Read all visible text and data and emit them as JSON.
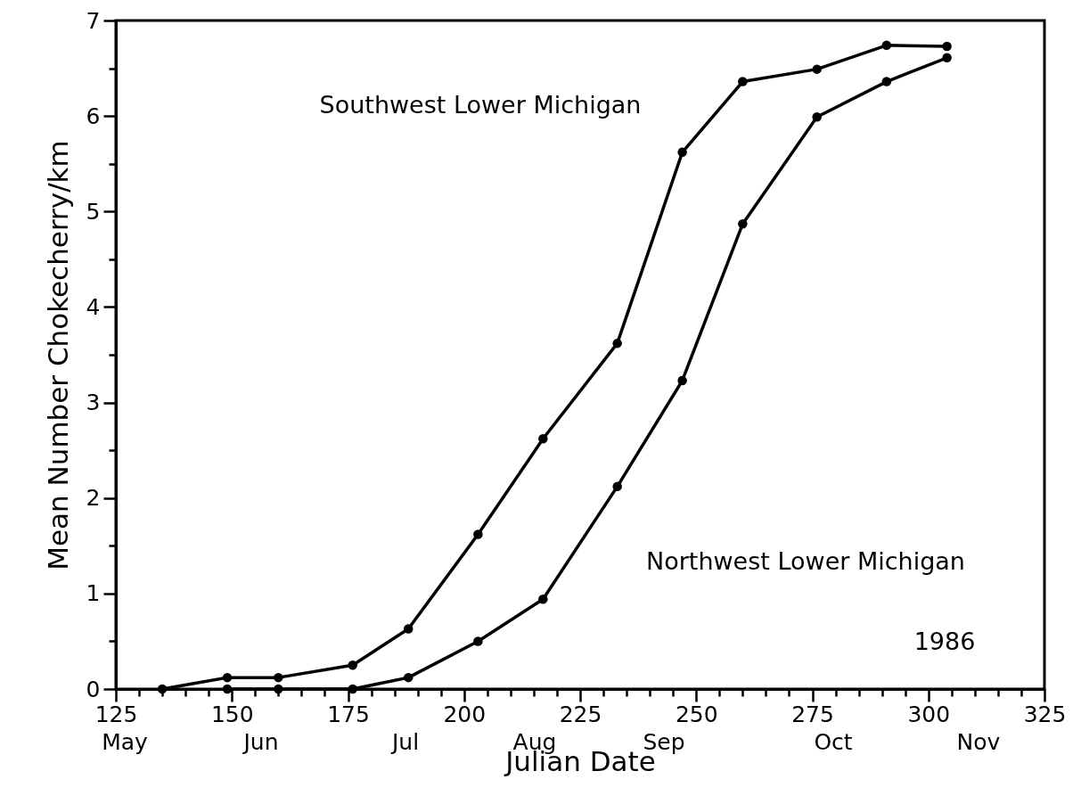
{
  "chart_data": {
    "type": "line",
    "xlabel": "Julian Date",
    "ylabel": "Mean Number Chokecherry/km",
    "xlim": [
      125,
      325
    ],
    "ylim": [
      0,
      7
    ],
    "xticks": [
      125,
      150,
      175,
      200,
      225,
      250,
      275,
      300,
      325,
      {
        "value": 130,
        "label": null
      },
      {
        "value": 135,
        "label": null
      },
      {
        "value": 140,
        "label": null
      },
      {
        "value": 145,
        "label": null
      },
      {
        "value": 155,
        "label": null
      },
      {
        "value": 160,
        "label": null
      },
      {
        "value": 165,
        "label": null
      },
      {
        "value": 170,
        "label": null
      },
      {
        "value": 180,
        "label": null
      },
      {
        "value": 185,
        "label": null
      },
      {
        "value": 190,
        "label": null
      },
      {
        "value": 195,
        "label": null
      },
      {
        "value": 205,
        "label": null
      },
      {
        "value": 210,
        "label": null
      },
      {
        "value": 215,
        "label": null
      },
      {
        "value": 220,
        "label": null
      },
      {
        "value": 230,
        "label": null
      },
      {
        "value": 235,
        "label": null
      },
      {
        "value": 240,
        "label": null
      },
      {
        "value": 245,
        "label": null
      },
      {
        "value": 255,
        "label": null
      },
      {
        "value": 260,
        "label": null
      },
      {
        "value": 265,
        "label": null
      },
      {
        "value": 270,
        "label": null
      },
      {
        "value": 280,
        "label": null
      },
      {
        "value": 285,
        "label": null
      },
      {
        "value": 290,
        "label": null
      },
      {
        "value": 295,
        "label": null
      },
      {
        "value": 305,
        "label": null
      },
      {
        "value": 310,
        "label": null
      },
      {
        "value": 315,
        "label": null
      },
      {
        "value": 320,
        "label": null
      }
    ],
    "yticks": [
      0,
      1,
      2,
      3,
      4,
      5,
      6,
      7,
      {
        "value": 0.5,
        "label": null
      },
      {
        "value": 1.5,
        "label": null
      },
      {
        "value": 2.5,
        "label": null
      },
      {
        "value": 3.5,
        "label": null
      },
      {
        "value": 4.5,
        "label": null
      },
      {
        "value": 5.5,
        "label": null
      },
      {
        "value": 6.5,
        "label": null
      }
    ],
    "grid": false,
    "legend": false,
    "marker": "circle",
    "line_style": "solid",
    "series": [
      {
        "color": "#000000",
        "x": [
          135,
          149,
          160,
          176,
          188,
          203,
          217,
          233,
          247,
          260,
          276,
          291,
          304
        ],
        "values": [
          0,
          0.12,
          0.12,
          0.25,
          0.63,
          1.62,
          2.62,
          3.62,
          5.62,
          6.36,
          6.49,
          6.74,
          6.73
        ]
      },
      {
        "color": "#000000",
        "x": [
          149,
          160,
          176,
          188,
          203,
          217,
          233,
          247,
          260,
          276,
          291,
          304
        ],
        "values": [
          0,
          0,
          0,
          0.12,
          0.5,
          0.94,
          2.12,
          3.23,
          4.87,
          5.99,
          6.36,
          6.61
        ]
      }
    ],
    "annotations": [
      "Southwest Lower Michigan",
      "Northwest Lower Michigan",
      "1986",
      "May",
      "Jun",
      "Jul",
      "Aug",
      "Sep",
      "Oct",
      "Nov"
    ]
  }
}
